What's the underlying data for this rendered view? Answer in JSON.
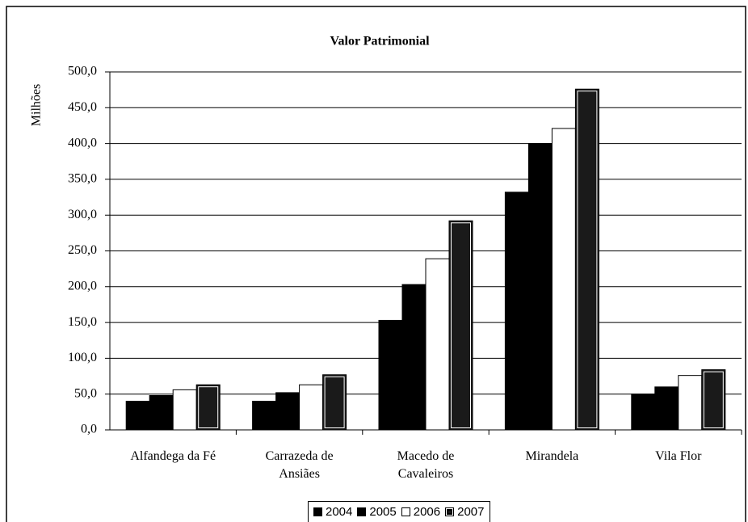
{
  "chart_data": {
    "type": "bar",
    "title": "Valor Patrimonial",
    "y_label": "Milhões",
    "categories": [
      "Alfandega da Fé",
      "Carrazeda de Ansiães",
      "Macedo de Cavaleiros",
      "Mirandela",
      "Vila Flor"
    ],
    "series": [
      {
        "name": "2004",
        "color": "#000000",
        "values": [
          40,
          40,
          153,
          332,
          50
        ]
      },
      {
        "name": "2005",
        "color": "#000000",
        "values": [
          48,
          52,
          203,
          400,
          60
        ]
      },
      {
        "name": "2006",
        "color": "#ffffff",
        "values": [
          56,
          63,
          239,
          421,
          76
        ]
      },
      {
        "name": "2007",
        "color": "#1a1a1a",
        "values": [
          63,
          77,
          292,
          476,
          84
        ]
      }
    ],
    "ylim": [
      0,
      500
    ],
    "yticks": [
      {
        "value": 0,
        "label": "0,0"
      },
      {
        "value": 50,
        "label": "50,0"
      },
      {
        "value": 100,
        "label": "100,0"
      },
      {
        "value": 150,
        "label": "150,0"
      },
      {
        "value": 200,
        "label": "200,0"
      },
      {
        "value": 250,
        "label": "250,0"
      },
      {
        "value": 300,
        "label": "300,0"
      },
      {
        "value": 350,
        "label": "350,0"
      },
      {
        "value": 400,
        "label": "400,0"
      },
      {
        "value": 450,
        "label": "450,0"
      },
      {
        "value": 500,
        "label": "500,0"
      }
    ],
    "grid": true,
    "legend": "bottom"
  }
}
